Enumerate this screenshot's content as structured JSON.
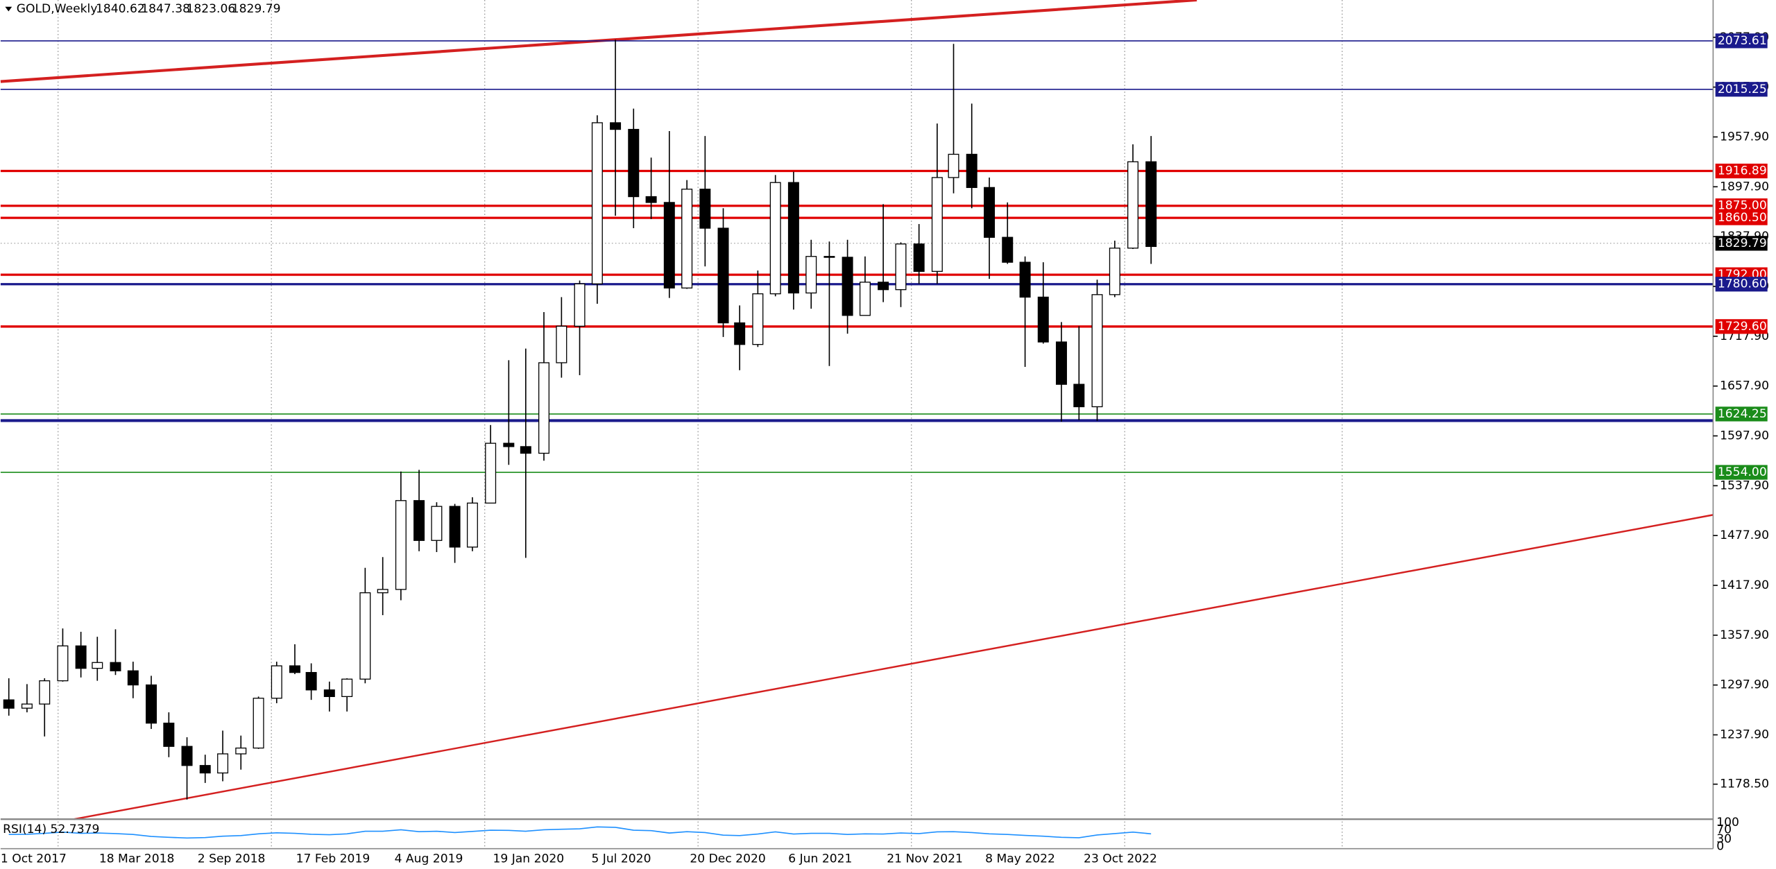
{
  "chart_data": {
    "type": "candlestick",
    "title": "GOLD,Weekly",
    "ohlc": [
      1840.62,
      1847.38,
      1823.06,
      1829.79
    ],
    "xlim": [
      "2017-10-01",
      "2025-10-01"
    ],
    "ylim": [
      1136.3,
      2122.8
    ],
    "xticks": [
      {
        "value": "2017-10-01",
        "label": "1 Oct 2017"
      },
      {
        "value": "2018-03-18",
        "label": "18 Mar 2018"
      },
      {
        "value": "2018-09-02",
        "label": "2 Sep 2018"
      },
      {
        "value": "2019-02-17",
        "label": "17 Feb 2019"
      },
      {
        "value": "2019-08-04",
        "label": "4 Aug 2019"
      },
      {
        "value": "2020-01-19",
        "label": "19 Jan 2020"
      },
      {
        "value": "2020-07-05",
        "label": "5 Jul 2020"
      },
      {
        "value": "2020-12-20",
        "label": "20 Dec 2020"
      },
      {
        "value": "2021-06-06",
        "label": "6 Jun 2021"
      },
      {
        "value": "2021-11-21",
        "label": "21 Nov 2021"
      },
      {
        "value": "2022-05-08",
        "label": "8 May 2022"
      },
      {
        "value": "2022-10-23",
        "label": "23 Oct 2022"
      }
    ],
    "xgrid": [
      "2018-01-07",
      "2019-01-06",
      "2020-01-05",
      "2021-01-03",
      "2022-01-02",
      "2023-01-01",
      "2024-01-07"
    ],
    "yticks": [
      {
        "value": 2077.9,
        "label": "2077.90"
      },
      {
        "value": 2017.9,
        "label": "2017.90"
      },
      {
        "value": 1957.9,
        "label": "1957.90"
      },
      {
        "value": 1897.9,
        "label": "1897.90"
      },
      {
        "value": 1837.9,
        "label": "1837.90"
      },
      {
        "value": 1777.9,
        "label": "1777.90"
      },
      {
        "value": 1717.9,
        "label": "1717.90"
      },
      {
        "value": 1657.9,
        "label": "1657.90"
      },
      {
        "value": 1597.9,
        "label": "1597.90"
      },
      {
        "value": 1537.9,
        "label": "1537.90"
      },
      {
        "value": 1477.9,
        "label": "1477.90"
      },
      {
        "value": 1417.9,
        "label": "1417.90"
      },
      {
        "value": 1357.9,
        "label": "1357.90"
      },
      {
        "value": 1297.9,
        "label": "1297.90"
      },
      {
        "value": 1237.9,
        "label": "1237.90"
      },
      {
        "value": 1178.5,
        "label": "1178.50"
      }
    ],
    "x": [
      "2017-10",
      "2017-11",
      "2017-12",
      "2018-01",
      "2018-02",
      "2018-03",
      "2018-04",
      "2018-05",
      "2018-06",
      "2018-07",
      "2018-08",
      "2018-09",
      "2018-10",
      "2018-11",
      "2018-12",
      "2019-01",
      "2019-02",
      "2019-03",
      "2019-04",
      "2019-05",
      "2019-06",
      "2019-07",
      "2019-08",
      "2019-09",
      "2019-10",
      "2019-11",
      "2019-12",
      "2020-01",
      "2020-02",
      "2020-03",
      "2020-04",
      "2020-05",
      "2020-06",
      "2020-07",
      "2020-08",
      "2020-09",
      "2020-10",
      "2020-11",
      "2020-12",
      "2021-01",
      "2021-02",
      "2021-03",
      "2021-04",
      "2021-05",
      "2021-06",
      "2021-07",
      "2021-08",
      "2021-09",
      "2021-10",
      "2021-11",
      "2021-12",
      "2022-01",
      "2022-02",
      "2022-03",
      "2022-04",
      "2022-05",
      "2022-06",
      "2022-07",
      "2022-08",
      "2022-09",
      "2022-10",
      "2022-11",
      "2022-12",
      "2023-01",
      "2023-02"
    ],
    "open": [
      1280,
      1270,
      1275,
      1303,
      1345,
      1318,
      1325,
      1315,
      1298,
      1252,
      1224,
      1201,
      1192,
      1215,
      1222,
      1282,
      1321,
      1313,
      1292,
      1284,
      1305,
      1409,
      1413,
      1520,
      1472,
      1513,
      1464,
      1517,
      1589,
      1585,
      1577,
      1686,
      1730,
      1781,
      1975,
      1967,
      1886,
      1879,
      1776,
      1895,
      1848,
      1734,
      1708,
      1769,
      1903,
      1770,
      1814,
      1813,
      1743,
      1783,
      1774,
      1829,
      1796,
      1909,
      1937,
      1897,
      1837,
      1807,
      1765,
      1711,
      1660,
      1633,
      1768,
      1824,
      1928
    ],
    "high": [
      1306,
      1299,
      1306,
      1366,
      1362,
      1356,
      1365,
      1326,
      1309,
      1265,
      1235,
      1214,
      1243,
      1237,
      1284,
      1326,
      1347,
      1324,
      1302,
      1306,
      1439,
      1452,
      1555,
      1557,
      1518,
      1516,
      1524,
      1611,
      1689,
      1703,
      1747,
      1765,
      1785,
      1984,
      2075,
      1992,
      1933,
      1965,
      1906,
      1959,
      1872,
      1755,
      1797,
      1912,
      1916,
      1834,
      1832,
      1834,
      1814,
      1877,
      1831,
      1853,
      1974,
      2070,
      1998,
      1909,
      1879,
      1814,
      1807,
      1735,
      1730,
      1786,
      1833,
      1949,
      1959
    ],
    "low": [
      1261,
      1265,
      1236,
      1302,
      1307,
      1303,
      1310,
      1282,
      1245,
      1211,
      1160,
      1180,
      1182,
      1196,
      1221,
      1276,
      1311,
      1280,
      1266,
      1266,
      1300,
      1382,
      1400,
      1459,
      1458,
      1445,
      1459,
      1517,
      1563,
      1451,
      1568,
      1668,
      1671,
      1757,
      1863,
      1848,
      1859,
      1764,
      1775,
      1802,
      1717,
      1677,
      1705,
      1766,
      1750,
      1751,
      1682,
      1721,
      1746,
      1759,
      1753,
      1781,
      1781,
      1890,
      1872,
      1787,
      1805,
      1681,
      1709,
      1615,
      1617,
      1616,
      1765,
      1823,
      1805
    ],
    "close": [
      1270,
      1275,
      1303,
      1345,
      1318,
      1325,
      1315,
      1298,
      1252,
      1224,
      1201,
      1192,
      1215,
      1222,
      1282,
      1321,
      1313,
      1292,
      1284,
      1305,
      1409,
      1413,
      1520,
      1472,
      1513,
      1464,
      1517,
      1589,
      1585,
      1577,
      1686,
      1730,
      1781,
      1975,
      1967,
      1886,
      1879,
      1776,
      1895,
      1848,
      1734,
      1708,
      1769,
      1903,
      1770,
      1814,
      1813,
      1743,
      1783,
      1774,
      1829,
      1796,
      1909,
      1937,
      1897,
      1837,
      1807,
      1765,
      1711,
      1660,
      1633,
      1768,
      1824,
      1928,
      1826
    ],
    "levels": [
      {
        "value": 2073.61,
        "label": "2073.61",
        "color": "#1a1a8c",
        "width": 1
      },
      {
        "value": 2015.25,
        "label": "2015.25",
        "color": "#1a1a8c",
        "width": 1
      },
      {
        "value": 1916.89,
        "label": "1916.89",
        "color": "#e00000",
        "width": 2
      },
      {
        "value": 1875,
        "label": "1875.00",
        "color": "#e00000",
        "width": 2
      },
      {
        "value": 1860.5,
        "label": "1860.50",
        "color": "#e00000",
        "width": 2
      },
      {
        "value": 1829.79,
        "label": "1829.79",
        "color": "#000000",
        "width": 0.5
      },
      {
        "value": 1792,
        "label": "1792.00",
        "color": "#e00000",
        "width": 2
      },
      {
        "value": 1780.6,
        "label": "1780.60",
        "color": "#1a1a8c",
        "width": 2
      },
      {
        "value": 1729.6,
        "label": "1729.60",
        "color": "#e00000",
        "width": 2
      },
      {
        "value": 1624.25,
        "label": "1624.25",
        "color": "#1a8c1a",
        "width": 1
      },
      {
        "value": 1616.3,
        "color": "#1a1a8c",
        "width": 2.5
      },
      {
        "value": 1554,
        "label": "1554.00",
        "color": "#1a8c1a",
        "width": 1
      }
    ],
    "trendlines": [
      {
        "x": [
          "2017-10-01",
          "2023-05-04"
        ],
        "y": [
          2024.6,
          2122.8
        ],
        "color": "#d42020",
        "width": 2.5
      },
      {
        "x": [
          "2018-02-03",
          "2025-10-01"
        ],
        "y": [
          1136.3,
          1502.8
        ],
        "color": "#d42020",
        "width": 1.5
      }
    ],
    "rsi": {
      "label": "RSI(14) 52.7379",
      "ylim": [
        0,
        100
      ],
      "yticks": [
        100,
        70,
        30,
        0
      ],
      "color": "#1e90ff",
      "values": [
        50,
        51,
        55,
        60,
        55,
        56,
        54,
        50,
        42,
        38,
        35,
        37,
        43,
        45,
        53,
        57,
        55,
        51,
        49,
        53,
        64,
        64,
        70,
        62,
        64,
        58,
        63,
        68,
        67,
        64,
        70,
        72,
        74,
        82,
        80,
        68,
        66,
        56,
        62,
        58,
        47,
        45,
        52,
        61,
        52,
        55,
        55,
        50,
        53,
        52,
        56,
        54,
        61,
        62,
        58,
        53,
        50,
        46,
        43,
        38,
        36,
        48,
        54,
        60,
        53
      ]
    }
  }
}
